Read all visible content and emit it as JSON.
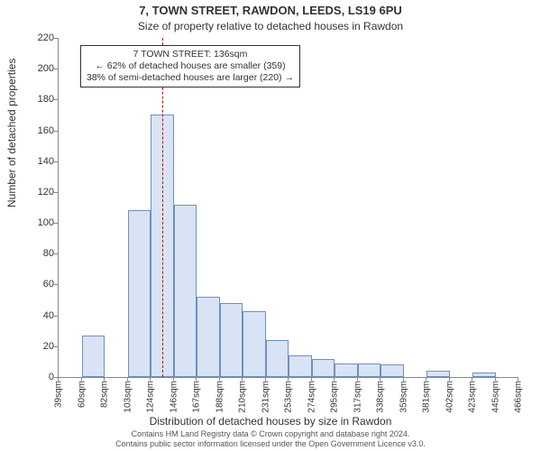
{
  "title_main": "7, TOWN STREET, RAWDON, LEEDS, LS19 6PU",
  "title_sub": "Size of property relative to detached houses in Rawdon",
  "ylabel": "Number of detached properties",
  "xlabel": "Distribution of detached houses by size in Rawdon",
  "footer_line1": "Contains HM Land Registry data © Crown copyright and database right 2024.",
  "footer_line2": "Contains public sector information licensed under the Open Government Licence v3.0.",
  "annotation": {
    "line1": "7 TOWN STREET: 136sqm",
    "line2": "← 62% of detached houses are smaller (359)",
    "line3": "38% of semi-detached houses are larger (220) →"
  },
  "chart": {
    "type": "histogram",
    "bar_fill": "#d8e4f4",
    "bar_stroke": "#6f8fbf",
    "reference_line_color": "#cc0000",
    "reference_x": 136,
    "background_color": "#ffffff",
    "ylim": [
      0,
      220
    ],
    "ytick_step": 20,
    "x_start": 39,
    "x_bin_width": 21.5,
    "x_labels": [
      "39sqm",
      "60sqm",
      "82sqm",
      "103sqm",
      "124sqm",
      "146sqm",
      "167sqm",
      "188sqm",
      "210sqm",
      "231sqm",
      "253sqm",
      "274sqm",
      "295sqm",
      "317sqm",
      "338sqm",
      "359sqm",
      "381sqm",
      "402sqm",
      "423sqm",
      "445sqm",
      "466sqm"
    ],
    "values": [
      0,
      27,
      0,
      108,
      170,
      112,
      52,
      48,
      43,
      24,
      14,
      12,
      9,
      9,
      8,
      0,
      4,
      0,
      3,
      0
    ],
    "title_fontsize": 13,
    "label_fontsize": 12,
    "tick_fontsize": 11
  }
}
